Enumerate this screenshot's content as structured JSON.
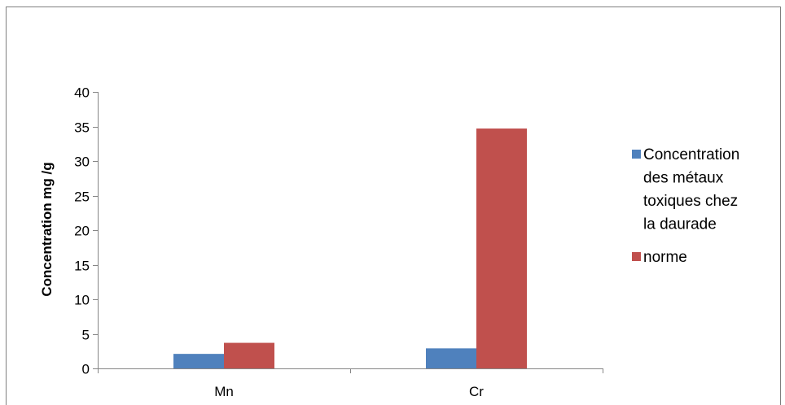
{
  "chart_data": {
    "type": "bar",
    "title": "",
    "xlabel": "",
    "ylabel": "Concentration mg /g",
    "ylim": [
      0,
      40
    ],
    "yticks": [
      0,
      5,
      10,
      15,
      20,
      25,
      30,
      35,
      40
    ],
    "categories": [
      "Mn",
      "Cr"
    ],
    "series": [
      {
        "name": "Concentration des métaux toxiques chez la daurade",
        "legend_lines": [
          "Concentration",
          "des métaux",
          "toxiques chez",
          "la daurade"
        ],
        "color": "#4f81bd",
        "values": [
          2.1,
          2.9
        ]
      },
      {
        "name": "norme",
        "legend_lines": [
          "norme"
        ],
        "color": "#c0504d",
        "values": [
          3.7,
          34.7
        ]
      }
    ],
    "grid": false,
    "legend_position": "right"
  }
}
